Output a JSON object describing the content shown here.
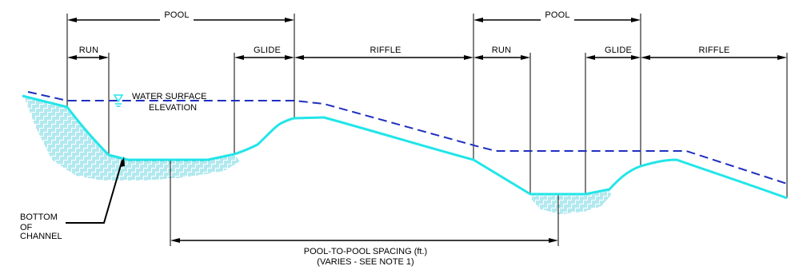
{
  "colors": {
    "channel_bed": "#22e5e8",
    "water_surface": "#1f2fbf",
    "hatch": "#3fc8d8",
    "dimension": "#000000"
  },
  "dimensions": {
    "pool_1": "POOL",
    "run_1": "RUN",
    "glide_1": "GLIDE",
    "riffle_1": "RIFFLE",
    "pool_2": "POOL",
    "run_2": "RUN",
    "glide_2": "GLIDE",
    "riffle_2": "RIFFLE"
  },
  "labels": {
    "water_surface_line1": "WATER SURFACE",
    "water_surface_line2": "ELEVATION",
    "bottom_line1": "BOTTOM",
    "bottom_line2": "OF",
    "bottom_line3": "CHANNEL",
    "spacing_line1": "POOL-TO-POOL SPACING (ft.)",
    "spacing_line2": "(VARIES - SEE NOTE 1)"
  },
  "icons": {
    "water_surface_symbol": "water-surface-triangle-icon"
  }
}
